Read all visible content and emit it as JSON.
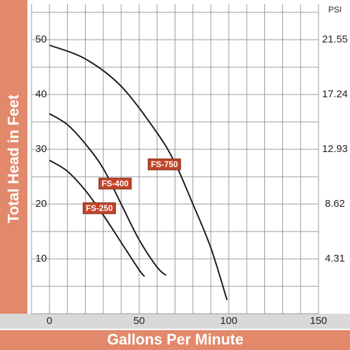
{
  "chart_data": {
    "type": "line",
    "xlabel": "Gallons Per Minute",
    "ylabel": "Total Head in Feet",
    "y2label": "PSI",
    "xlim": [
      -10,
      150
    ],
    "ylim": [
      0,
      56.5
    ],
    "y2lim": [
      0,
      24.35
    ],
    "xticks": [
      0,
      50,
      100,
      150
    ],
    "yticks": [
      10,
      20,
      30,
      40,
      50
    ],
    "y2ticks": [
      4.31,
      8.62,
      12.93,
      17.24,
      21.55
    ],
    "x_grid_step": 10,
    "y_grid_step": 5,
    "grid": true,
    "series": [
      {
        "name": "FS-750",
        "color": "#1a1a1a",
        "x": [
          0,
          20,
          40,
          60,
          70,
          80,
          90,
          99
        ],
        "values": [
          49,
          46.5,
          41.5,
          33,
          27.5,
          20,
          12,
          2.5
        ]
      },
      {
        "name": "FS-400",
        "color": "#1a1a1a",
        "x": [
          0,
          10,
          20,
          30,
          40,
          50,
          60,
          65
        ],
        "values": [
          36.5,
          34.5,
          31,
          26.5,
          20,
          13.5,
          8.5,
          7
        ]
      },
      {
        "name": "FS-250",
        "color": "#1a1a1a",
        "x": [
          0,
          10,
          20,
          30,
          40,
          50,
          53
        ],
        "values": [
          28,
          26,
          22.5,
          18,
          13,
          8,
          6.8
        ]
      }
    ]
  }
}
